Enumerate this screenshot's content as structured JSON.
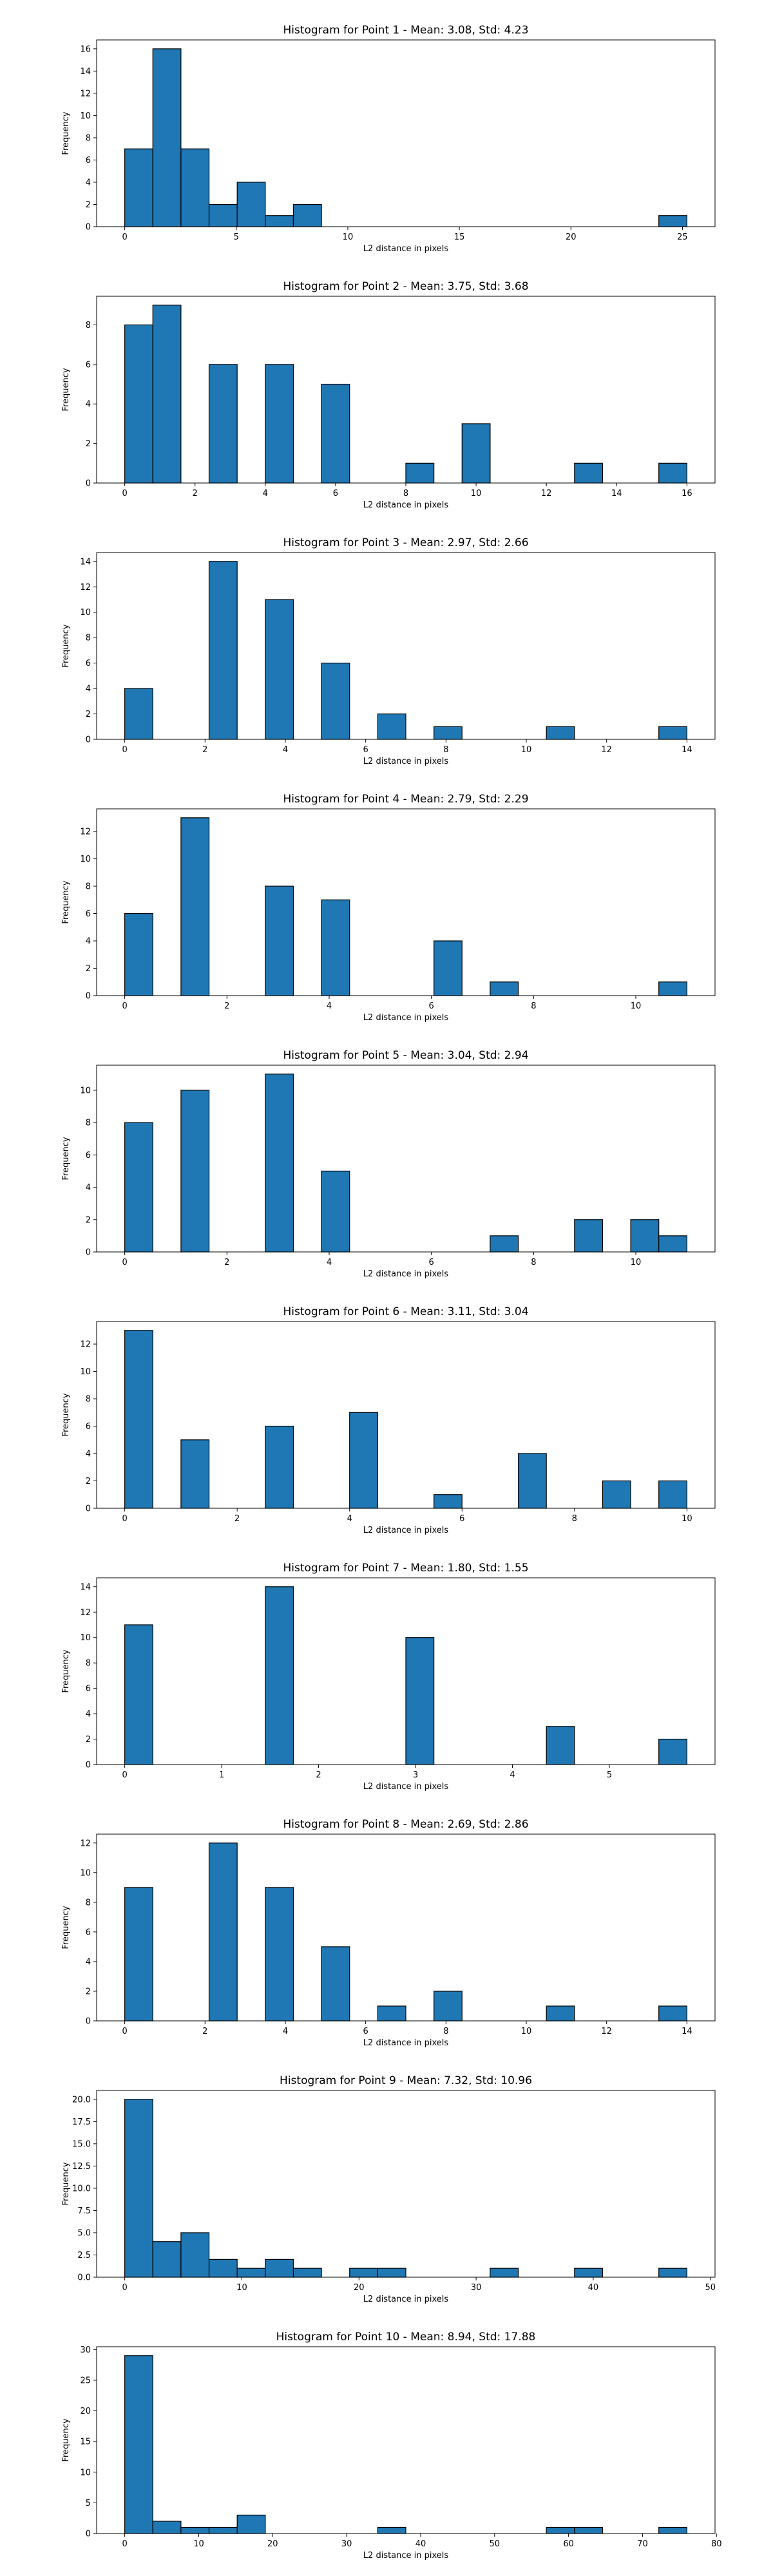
{
  "chart_data": [
    {
      "type": "bar",
      "title": "Histogram for Point 1 - Mean: 3.08, Std: 4.23",
      "xlabel": "L2 distance in pixels",
      "ylabel": "Frequency",
      "xlim": [
        -1.26,
        26.46
      ],
      "ylim": [
        0,
        16.8
      ],
      "xticks": [
        0,
        5,
        10,
        15,
        20,
        25
      ],
      "yticks": [
        0,
        2,
        4,
        6,
        8,
        10,
        12,
        14,
        16
      ],
      "bin_start": 0,
      "bin_width": 1.26,
      "counts": [
        7,
        16,
        7,
        2,
        4,
        1,
        2,
        0,
        0,
        0,
        0,
        0,
        0,
        0,
        0,
        0,
        0,
        0,
        0,
        1
      ],
      "bar_color": "#1f77b4"
    },
    {
      "type": "bar",
      "title": "Histogram for Point 2 - Mean: 3.75, Std: 3.68",
      "xlabel": "L2 distance in pixels",
      "ylabel": "Frequency",
      "xlim": [
        -0.8,
        16.8
      ],
      "ylim": [
        0,
        9.45
      ],
      "xticks": [
        0,
        2,
        4,
        6,
        8,
        10,
        12,
        14,
        16
      ],
      "yticks": [
        0,
        2,
        4,
        6,
        8
      ],
      "bin_start": 0,
      "bin_width": 0.8,
      "counts": [
        8,
        9,
        0,
        6,
        0,
        6,
        0,
        5,
        0,
        0,
        1,
        0,
        3,
        0,
        0,
        0,
        1,
        0,
        0,
        1
      ],
      "bar_color": "#1f77b4"
    },
    {
      "type": "bar",
      "title": "Histogram for Point 3 - Mean: 2.97, Std: 2.66",
      "xlabel": "L2 distance in pixels",
      "ylabel": "Frequency",
      "xlim": [
        -0.7,
        14.7
      ],
      "ylim": [
        0,
        14.7
      ],
      "xticks": [
        0,
        2,
        4,
        6,
        8,
        10,
        12,
        14
      ],
      "yticks": [
        0,
        2,
        4,
        6,
        8,
        10,
        12,
        14
      ],
      "bin_start": 0,
      "bin_width": 0.7,
      "counts": [
        4,
        0,
        0,
        14,
        0,
        11,
        0,
        6,
        0,
        2,
        0,
        1,
        0,
        0,
        0,
        1,
        0,
        0,
        0,
        1
      ],
      "bar_color": "#1f77b4"
    },
    {
      "type": "bar",
      "title": "Histogram for Point 4 - Mean: 2.79, Std: 2.29",
      "xlabel": "L2 distance in pixels",
      "ylabel": "Frequency",
      "xlim": [
        -0.55,
        11.55
      ],
      "ylim": [
        0,
        13.65
      ],
      "xticks": [
        0,
        2,
        4,
        6,
        8,
        10
      ],
      "yticks": [
        0,
        2,
        4,
        6,
        8,
        10,
        12
      ],
      "bin_start": 0,
      "bin_width": 0.55,
      "counts": [
        6,
        0,
        13,
        0,
        0,
        8,
        0,
        7,
        0,
        0,
        0,
        4,
        0,
        1,
        0,
        0,
        0,
        0,
        0,
        1
      ],
      "bar_color": "#1f77b4"
    },
    {
      "type": "bar",
      "title": "Histogram for Point 5 - Mean: 3.04, Std: 2.94",
      "xlabel": "L2 distance in pixels",
      "ylabel": "Frequency",
      "xlim": [
        -0.55,
        11.55
      ],
      "ylim": [
        0,
        11.55
      ],
      "xticks": [
        0,
        2,
        4,
        6,
        8,
        10
      ],
      "yticks": [
        0,
        2,
        4,
        6,
        8,
        10
      ],
      "bin_start": 0,
      "bin_width": 0.55,
      "counts": [
        8,
        0,
        10,
        0,
        0,
        11,
        0,
        5,
        0,
        0,
        0,
        0,
        0,
        1,
        0,
        0,
        2,
        0,
        2,
        1
      ],
      "bar_color": "#1f77b4"
    },
    {
      "type": "bar",
      "title": "Histogram for Point 6 - Mean: 3.11, Std: 3.04",
      "xlabel": "L2 distance in pixels",
      "ylabel": "Frequency",
      "xlim": [
        -0.5,
        10.5
      ],
      "ylim": [
        0,
        13.65
      ],
      "xticks": [
        0,
        2,
        4,
        6,
        8,
        10
      ],
      "yticks": [
        0,
        2,
        4,
        6,
        8,
        10,
        12
      ],
      "bin_start": 0,
      "bin_width": 0.5,
      "counts": [
        13,
        0,
        5,
        0,
        0,
        6,
        0,
        0,
        7,
        0,
        0,
        1,
        0,
        0,
        4,
        0,
        0,
        2,
        0,
        2
      ],
      "bar_color": "#1f77b4"
    },
    {
      "type": "bar",
      "title": "Histogram for Point 7 - Mean: 1.80, Std: 1.55",
      "xlabel": "L2 distance in pixels",
      "ylabel": "Frequency",
      "xlim": [
        -0.29,
        6.09
      ],
      "ylim": [
        0,
        14.7
      ],
      "xticks": [
        0,
        1,
        2,
        3,
        4,
        5
      ],
      "yticks": [
        0,
        2,
        4,
        6,
        8,
        10,
        12,
        14
      ],
      "bin_start": 0,
      "bin_width": 0.29,
      "counts": [
        11,
        0,
        0,
        0,
        0,
        14,
        0,
        0,
        0,
        0,
        10,
        0,
        0,
        0,
        0,
        3,
        0,
        0,
        0,
        2
      ],
      "bar_color": "#1f77b4"
    },
    {
      "type": "bar",
      "title": "Histogram for Point 8 - Mean: 2.69, Std: 2.86",
      "xlabel": "L2 distance in pixels",
      "ylabel": "Frequency",
      "xlim": [
        -0.7,
        14.7
      ],
      "ylim": [
        0,
        12.6
      ],
      "xticks": [
        0,
        2,
        4,
        6,
        8,
        10,
        12,
        14
      ],
      "yticks": [
        0,
        2,
        4,
        6,
        8,
        10,
        12
      ],
      "bin_start": 0,
      "bin_width": 0.7,
      "counts": [
        9,
        0,
        0,
        12,
        0,
        9,
        0,
        5,
        0,
        1,
        0,
        2,
        0,
        0,
        0,
        1,
        0,
        0,
        0,
        1
      ],
      "bar_color": "#1f77b4"
    },
    {
      "type": "bar",
      "title": "Histogram for Point 9 - Mean: 7.32, Std: 10.96",
      "xlabel": "L2 distance in pixels",
      "ylabel": "Frequency",
      "xlim": [
        -2.4,
        50.4
      ],
      "ylim": [
        0,
        21.0
      ],
      "xticks": [
        0,
        10,
        20,
        30,
        40,
        50
      ],
      "yticks": [
        0,
        2.5,
        5.0,
        7.5,
        10.0,
        12.5,
        15.0,
        17.5,
        20.0
      ],
      "ytick_labels": [
        "0.0",
        "2.5",
        "5.0",
        "7.5",
        "10.0",
        "12.5",
        "15.0",
        "17.5",
        "20.0"
      ],
      "bin_start": 0,
      "bin_width": 2.4,
      "counts": [
        20,
        4,
        5,
        2,
        1,
        2,
        1,
        0,
        1,
        1,
        0,
        0,
        0,
        1,
        0,
        0,
        1,
        0,
        0,
        1
      ],
      "bar_color": "#1f77b4"
    },
    {
      "type": "bar",
      "title": "Histogram for Point 10 - Mean: 8.94, Std: 17.88",
      "xlabel": "L2 distance in pixels",
      "ylabel": "Frequency",
      "xlim": [
        -3.8,
        79.8
      ],
      "ylim": [
        0,
        30.45
      ],
      "xticks": [
        0,
        10,
        20,
        30,
        40,
        50,
        60,
        70,
        80
      ],
      "yticks": [
        0,
        5,
        10,
        15,
        20,
        25,
        30
      ],
      "bin_start": 0,
      "bin_width": 3.8,
      "counts": [
        29,
        2,
        1,
        1,
        3,
        0,
        0,
        0,
        0,
        1,
        0,
        0,
        0,
        0,
        0,
        1,
        1,
        0,
        0,
        1
      ],
      "bar_color": "#1f77b4"
    }
  ]
}
